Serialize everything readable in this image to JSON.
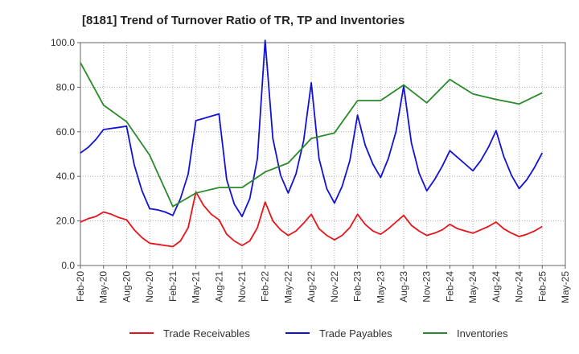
{
  "chart_data": {
    "type": "line",
    "title": "[8181]  Trend of Turnover Ratio of TR, TP and Inventories",
    "xlabel": "",
    "ylabel": "",
    "ylim": [
      0,
      100
    ],
    "yticks": [
      "0.0",
      "20.0",
      "40.0",
      "60.0",
      "80.0",
      "100.0"
    ],
    "xtick_labels": [
      "Feb-20",
      "May-20",
      "Aug-20",
      "Nov-20",
      "Feb-21",
      "May-21",
      "Aug-21",
      "Nov-21",
      "Feb-22",
      "May-22",
      "Aug-22",
      "Nov-22",
      "Feb-23",
      "May-23",
      "Aug-23",
      "Nov-23",
      "Feb-24",
      "May-24",
      "Aug-24",
      "Nov-24",
      "Feb-25",
      "May-25"
    ],
    "grid": true,
    "legend_position": "bottom",
    "colors": {
      "receivables": "#e8141a",
      "payables": "#1212d6",
      "inventories": "#2a8a2a"
    },
    "series": [
      {
        "name": "Trade Receivables",
        "color": "#e8141a",
        "x": [
          0,
          1,
          2,
          3,
          4,
          5,
          6,
          7,
          8,
          9,
          10,
          11,
          12,
          13,
          14,
          15,
          16,
          17,
          18,
          19,
          20,
          21,
          22,
          23,
          24,
          25,
          26,
          27,
          28,
          29,
          30,
          31,
          32,
          33,
          34,
          35,
          36,
          37,
          38,
          39,
          40,
          41,
          42,
          43,
          44,
          45,
          46,
          47,
          48,
          49,
          50,
          51,
          52,
          53,
          54,
          55,
          56,
          57,
          58,
          59,
          60
        ],
        "values": [
          19.5,
          21.0,
          22.0,
          24.0,
          23.0,
          21.5,
          20.5,
          16.0,
          12.5,
          10.0,
          9.5,
          9.0,
          8.5,
          11.0,
          17.0,
          33.0,
          27.0,
          23.0,
          20.5,
          14.0,
          11.0,
          9.0,
          11.0,
          17.0,
          28.5,
          20.0,
          16.0,
          13.5,
          15.5,
          19.0,
          23.0,
          16.5,
          13.5,
          11.5,
          13.5,
          17.0,
          23.0,
          18.5,
          15.5,
          14.0,
          16.5,
          19.5,
          22.5,
          18.0,
          15.5,
          13.5,
          14.5,
          16.0,
          18.5,
          16.5,
          15.5,
          14.5,
          16.0,
          17.5,
          19.5,
          16.5,
          14.5,
          13.0,
          14.0,
          15.5,
          17.5
        ]
      },
      {
        "name": "Trade Payables",
        "color": "#1212d6",
        "x": [
          0,
          1,
          2,
          3,
          4,
          5,
          6,
          7,
          8,
          9,
          10,
          11,
          12,
          13,
          14,
          15,
          16,
          17,
          18,
          19,
          20,
          21,
          22,
          23,
          24,
          25,
          26,
          27,
          28,
          29,
          30,
          31,
          32,
          33,
          34,
          35,
          36,
          37,
          38,
          39,
          40,
          41,
          42,
          43,
          44,
          45,
          46,
          47,
          48,
          49,
          50,
          51,
          52,
          53,
          54,
          55,
          56,
          57,
          58,
          59,
          60
        ],
        "values": [
          50.5,
          53.0,
          56.5,
          61.0,
          61.5,
          62.0,
          62.5,
          45.0,
          33.5,
          25.5,
          25.0,
          24.0,
          22.5,
          30.0,
          41.0,
          65.0,
          66.0,
          67.0,
          68.0,
          38.5,
          27.5,
          22.0,
          30.0,
          48.0,
          101.0,
          57.0,
          40.5,
          32.5,
          41.0,
          56.0,
          82.0,
          48.0,
          34.5,
          28.0,
          35.5,
          47.0,
          67.5,
          54.0,
          45.5,
          39.5,
          48.0,
          60.0,
          80.5,
          55.0,
          41.5,
          33.5,
          38.5,
          44.5,
          51.5,
          48.5,
          45.5,
          42.5,
          47.0,
          53.0,
          60.5,
          49.0,
          40.5,
          34.5,
          38.5,
          44.0,
          50.5
        ]
      },
      {
        "name": "Inventories",
        "color": "#2a8a2a",
        "x": [
          0,
          3,
          6,
          9,
          12,
          15,
          18,
          21,
          24,
          27,
          30,
          33,
          36,
          39,
          42,
          45,
          48,
          51,
          54,
          57,
          60
        ],
        "values": [
          91.0,
          72.0,
          64.5,
          49.5,
          26.5,
          32.5,
          35.0,
          35.0,
          42.0,
          46.0,
          57.0,
          59.5,
          74.0,
          74.0,
          81.0,
          73.0,
          83.5,
          77.0,
          74.5,
          72.5,
          77.5
        ]
      }
    ]
  }
}
